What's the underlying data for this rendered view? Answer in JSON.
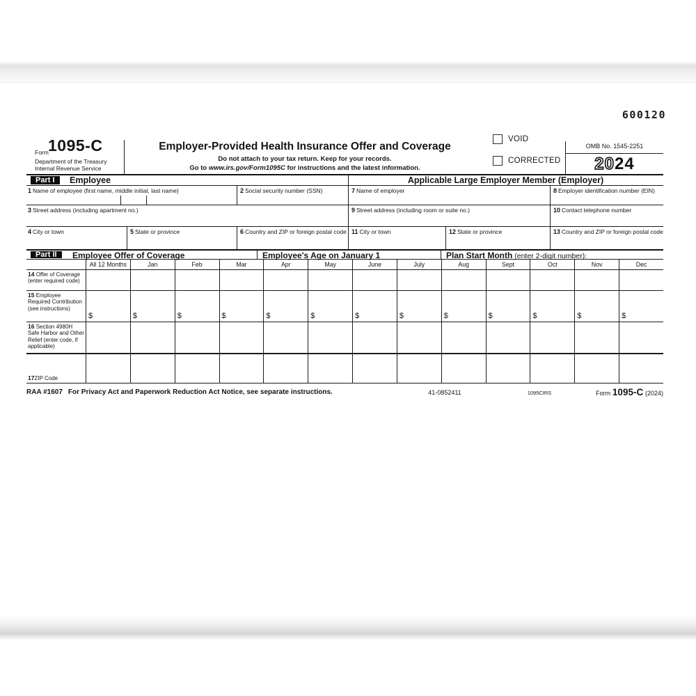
{
  "serial": "600120",
  "header": {
    "form_word": "Form",
    "form_number": "1095-C",
    "dept_line1": "Department of the Treasury",
    "dept_line2": "Internal Revenue Service",
    "title": "Employer-Provided Health Insurance Offer and Coverage",
    "subtitle1": "Do not attach to your tax return. Keep for your records.",
    "subtitle2_prefix": "Go to ",
    "subtitle2_link": "www.irs.gov/Form1095C",
    "subtitle2_suffix": " for instructions and the latest information.",
    "void_label": "VOID",
    "corrected_label": "CORRECTED",
    "omb": "OMB No. 1545-2251",
    "year_outline": "20",
    "year_bold": "24"
  },
  "part1": {
    "label": "Part I",
    "left_title": "Employee",
    "right_title": "Applicable Large Employer Member (Employer)",
    "fields": {
      "f1": {
        "num": "1",
        "label": "Name of employee (first name, middle initial, last name)"
      },
      "f2": {
        "num": "2",
        "label": "Social security number (SSN)"
      },
      "f3": {
        "num": "3",
        "label": "Street address (including apartment no.)"
      },
      "f4": {
        "num": "4",
        "label": "City or town"
      },
      "f5": {
        "num": "5",
        "label": "State or province"
      },
      "f6": {
        "num": "6",
        "label": "Country and ZIP or foreign postal code"
      },
      "f7": {
        "num": "7",
        "label": "Name of employer"
      },
      "f8": {
        "num": "8",
        "label": "Employer identification number (EIN)"
      },
      "f9": {
        "num": "9",
        "label": "Street address (including room or suite no.)"
      },
      "f10": {
        "num": "10",
        "label": "Contact telephone number"
      },
      "f11": {
        "num": "11",
        "label": "City or town"
      },
      "f12": {
        "num": "12",
        "label": "State or province"
      },
      "f13": {
        "num": "13",
        "label": "Country and ZIP or foreign postal code"
      }
    }
  },
  "part2": {
    "label": "Part II",
    "title": "Employee Offer of Coverage",
    "age_title": "Employee's Age on January 1",
    "plan_bold": "Plan Start Month",
    "plan_rest": " (enter 2-digit number):",
    "months": [
      "All 12 Months",
      "Jan",
      "Feb",
      "Mar",
      "Apr",
      "May",
      "June",
      "July",
      "Aug",
      "Sept",
      "Oct",
      "Nov",
      "Dec"
    ],
    "currency": "$",
    "rows": [
      {
        "num": "14",
        "label": "Offer of Coverage (enter required code)",
        "dollar": false
      },
      {
        "num": "15",
        "label": "Employee Required Contribution (see instructions)",
        "dollar": true
      },
      {
        "num": "16",
        "label": "Section 4980H Safe Harbor and Other Relief (enter code, if applicable)",
        "dollar": false
      },
      {
        "num": "17",
        "label": "ZIP Code",
        "dollar": false
      }
    ]
  },
  "footer": {
    "raa": "RAA #1607",
    "privacy": "For Privacy Act and Paperwork Reduction Act Notice, see separate instructions.",
    "code_left": "41-0852411",
    "code_right": "1095CIRS",
    "form_word": "Form",
    "form_number": "1095-C",
    "year": "(2024)"
  }
}
